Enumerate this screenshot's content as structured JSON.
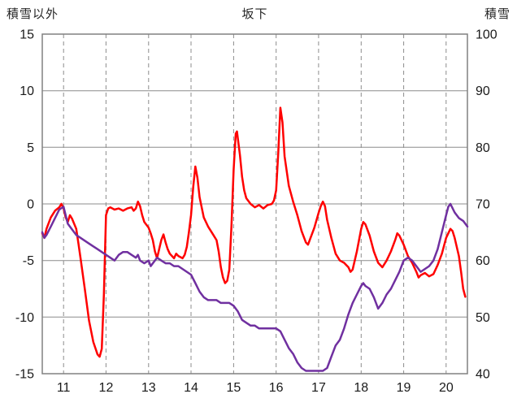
{
  "header": {
    "left_axis_title": "積雪以外",
    "title": "坂下",
    "right_axis_title": "積雪"
  },
  "colors": {
    "red_line": "#ff0000",
    "purple_line": "#7030a0",
    "grid": "#8c8c8c",
    "border": "#808080",
    "tick_text": "#1a1a1a"
  },
  "chart_data": {
    "type": "line",
    "title": "坂下",
    "left_axis": {
      "label": "積雪以外",
      "min": -15,
      "max": 15,
      "ticks": [
        15,
        10,
        5,
        0,
        -5,
        -10,
        -15
      ]
    },
    "right_axis": {
      "label": "積雪",
      "min": 40,
      "max": 100,
      "ticks": [
        100,
        90,
        80,
        70,
        60,
        50,
        40
      ]
    },
    "x_axis": {
      "min": 10.5,
      "max": 20.5,
      "ticks": [
        11,
        12,
        13,
        14,
        15,
        16,
        17,
        18,
        19,
        20
      ]
    },
    "grid": {
      "horizontal": "solid",
      "vertical": "dashed"
    },
    "legend": "none",
    "series": [
      {
        "name": "red-line",
        "axis": "left",
        "color": "#ff0000",
        "points": [
          [
            10.5,
            -2.6
          ],
          [
            10.55,
            -3.0
          ],
          [
            10.6,
            -2.2
          ],
          [
            10.7,
            -1.2
          ],
          [
            10.8,
            -0.6
          ],
          [
            10.9,
            -0.3
          ],
          [
            10.95,
            0.0
          ],
          [
            11.0,
            -0.4
          ],
          [
            11.05,
            -1.2
          ],
          [
            11.1,
            -1.6
          ],
          [
            11.15,
            -1.0
          ],
          [
            11.2,
            -1.3
          ],
          [
            11.3,
            -2.2
          ],
          [
            11.35,
            -3.5
          ],
          [
            11.4,
            -4.8
          ],
          [
            11.5,
            -7.5
          ],
          [
            11.6,
            -10.3
          ],
          [
            11.7,
            -12.2
          ],
          [
            11.8,
            -13.3
          ],
          [
            11.85,
            -13.5
          ],
          [
            11.9,
            -12.8
          ],
          [
            11.95,
            -8.0
          ],
          [
            12.0,
            -1.0
          ],
          [
            12.05,
            -0.4
          ],
          [
            12.1,
            -0.3
          ],
          [
            12.2,
            -0.5
          ],
          [
            12.3,
            -0.4
          ],
          [
            12.4,
            -0.6
          ],
          [
            12.5,
            -0.4
          ],
          [
            12.6,
            -0.3
          ],
          [
            12.65,
            -0.6
          ],
          [
            12.7,
            -0.4
          ],
          [
            12.75,
            0.2
          ],
          [
            12.8,
            -0.2
          ],
          [
            12.85,
            -1.0
          ],
          [
            12.9,
            -1.6
          ],
          [
            13.0,
            -2.1
          ],
          [
            13.05,
            -2.6
          ],
          [
            13.1,
            -3.2
          ],
          [
            13.15,
            -4.2
          ],
          [
            13.2,
            -4.8
          ],
          [
            13.25,
            -4.0
          ],
          [
            13.3,
            -3.2
          ],
          [
            13.35,
            -2.7
          ],
          [
            13.4,
            -3.4
          ],
          [
            13.45,
            -4.0
          ],
          [
            13.5,
            -4.4
          ],
          [
            13.6,
            -4.8
          ],
          [
            13.65,
            -4.4
          ],
          [
            13.7,
            -4.6
          ],
          [
            13.8,
            -4.8
          ],
          [
            13.85,
            -4.5
          ],
          [
            13.9,
            -3.8
          ],
          [
            13.95,
            -2.5
          ],
          [
            14.0,
            -1.0
          ],
          [
            14.05,
            1.5
          ],
          [
            14.1,
            3.3
          ],
          [
            14.15,
            2.3
          ],
          [
            14.2,
            0.6
          ],
          [
            14.25,
            -0.3
          ],
          [
            14.3,
            -1.2
          ],
          [
            14.4,
            -2.0
          ],
          [
            14.5,
            -2.6
          ],
          [
            14.6,
            -3.2
          ],
          [
            14.65,
            -4.2
          ],
          [
            14.7,
            -5.6
          ],
          [
            14.75,
            -6.5
          ],
          [
            14.8,
            -7.0
          ],
          [
            14.85,
            -6.8
          ],
          [
            14.9,
            -5.8
          ],
          [
            14.95,
            -2.0
          ],
          [
            15.0,
            3.0
          ],
          [
            15.05,
            6.2
          ],
          [
            15.08,
            6.4
          ],
          [
            15.15,
            4.3
          ],
          [
            15.2,
            2.4
          ],
          [
            15.25,
            1.2
          ],
          [
            15.3,
            0.5
          ],
          [
            15.4,
            0.0
          ],
          [
            15.5,
            -0.3
          ],
          [
            15.6,
            -0.1
          ],
          [
            15.7,
            -0.4
          ],
          [
            15.8,
            -0.1
          ],
          [
            15.9,
            0.0
          ],
          [
            15.95,
            0.3
          ],
          [
            16.0,
            1.2
          ],
          [
            16.05,
            4.5
          ],
          [
            16.1,
            8.5
          ],
          [
            16.15,
            7.2
          ],
          [
            16.2,
            4.2
          ],
          [
            16.3,
            1.6
          ],
          [
            16.4,
            0.2
          ],
          [
            16.5,
            -1.0
          ],
          [
            16.6,
            -2.4
          ],
          [
            16.7,
            -3.4
          ],
          [
            16.75,
            -3.6
          ],
          [
            16.8,
            -3.1
          ],
          [
            16.9,
            -2.1
          ],
          [
            17.0,
            -0.8
          ],
          [
            17.05,
            -0.2
          ],
          [
            17.1,
            0.2
          ],
          [
            17.15,
            -0.2
          ],
          [
            17.2,
            -1.4
          ],
          [
            17.3,
            -3.0
          ],
          [
            17.4,
            -4.4
          ],
          [
            17.5,
            -5.0
          ],
          [
            17.6,
            -5.2
          ],
          [
            17.7,
            -5.6
          ],
          [
            17.75,
            -6.0
          ],
          [
            17.8,
            -5.8
          ],
          [
            17.9,
            -4.2
          ],
          [
            18.0,
            -2.2
          ],
          [
            18.05,
            -1.6
          ],
          [
            18.1,
            -1.8
          ],
          [
            18.2,
            -2.8
          ],
          [
            18.3,
            -4.2
          ],
          [
            18.4,
            -5.2
          ],
          [
            18.5,
            -5.6
          ],
          [
            18.6,
            -5.0
          ],
          [
            18.7,
            -4.2
          ],
          [
            18.8,
            -3.2
          ],
          [
            18.85,
            -2.6
          ],
          [
            18.9,
            -2.8
          ],
          [
            19.0,
            -3.6
          ],
          [
            19.1,
            -4.6
          ],
          [
            19.2,
            -5.2
          ],
          [
            19.3,
            -6.0
          ],
          [
            19.35,
            -6.5
          ],
          [
            19.4,
            -6.3
          ],
          [
            19.5,
            -6.1
          ],
          [
            19.6,
            -6.4
          ],
          [
            19.7,
            -6.2
          ],
          [
            19.8,
            -5.4
          ],
          [
            19.9,
            -4.4
          ],
          [
            20.0,
            -3.0
          ],
          [
            20.1,
            -2.2
          ],
          [
            20.15,
            -2.4
          ],
          [
            20.2,
            -3.0
          ],
          [
            20.3,
            -4.6
          ],
          [
            20.35,
            -6.0
          ],
          [
            20.4,
            -7.5
          ],
          [
            20.45,
            -8.2
          ]
        ]
      },
      {
        "name": "purple-line",
        "axis": "right",
        "color": "#7030a0",
        "points": [
          [
            10.5,
            65
          ],
          [
            10.55,
            64
          ],
          [
            10.6,
            64.5
          ],
          [
            10.7,
            66
          ],
          [
            10.8,
            67.5
          ],
          [
            10.9,
            69
          ],
          [
            11.0,
            69.5
          ],
          [
            11.05,
            68
          ],
          [
            11.1,
            66.5
          ],
          [
            11.2,
            65.5
          ],
          [
            11.3,
            64.5
          ],
          [
            11.4,
            64
          ],
          [
            11.5,
            63.5
          ],
          [
            11.6,
            63
          ],
          [
            11.7,
            62.5
          ],
          [
            11.8,
            62
          ],
          [
            11.9,
            61.5
          ],
          [
            12.0,
            61
          ],
          [
            12.1,
            60.5
          ],
          [
            12.2,
            60
          ],
          [
            12.3,
            61
          ],
          [
            12.4,
            61.5
          ],
          [
            12.5,
            61.5
          ],
          [
            12.6,
            61
          ],
          [
            12.7,
            60.5
          ],
          [
            12.75,
            61
          ],
          [
            12.8,
            60
          ],
          [
            12.9,
            59.5
          ],
          [
            13.0,
            60
          ],
          [
            13.05,
            59
          ],
          [
            13.1,
            59.5
          ],
          [
            13.2,
            60.5
          ],
          [
            13.3,
            60
          ],
          [
            13.4,
            59.5
          ],
          [
            13.5,
            59.5
          ],
          [
            13.6,
            59
          ],
          [
            13.7,
            59
          ],
          [
            13.8,
            58.5
          ],
          [
            13.9,
            58
          ],
          [
            14.0,
            57.5
          ],
          [
            14.1,
            56
          ],
          [
            14.2,
            54.5
          ],
          [
            14.3,
            53.5
          ],
          [
            14.4,
            53
          ],
          [
            14.5,
            53
          ],
          [
            14.6,
            53
          ],
          [
            14.7,
            52.5
          ],
          [
            14.8,
            52.5
          ],
          [
            14.9,
            52.5
          ],
          [
            15.0,
            52
          ],
          [
            15.1,
            51
          ],
          [
            15.2,
            49.5
          ],
          [
            15.3,
            49
          ],
          [
            15.4,
            48.5
          ],
          [
            15.5,
            48.5
          ],
          [
            15.6,
            48
          ],
          [
            15.7,
            48
          ],
          [
            15.8,
            48
          ],
          [
            15.9,
            48
          ],
          [
            16.0,
            48
          ],
          [
            16.1,
            47.5
          ],
          [
            16.2,
            46
          ],
          [
            16.3,
            44.5
          ],
          [
            16.4,
            43.5
          ],
          [
            16.5,
            42
          ],
          [
            16.6,
            41
          ],
          [
            16.7,
            40.5
          ],
          [
            16.8,
            40.5
          ],
          [
            16.9,
            40.5
          ],
          [
            17.0,
            40.5
          ],
          [
            17.1,
            40.5
          ],
          [
            17.2,
            41
          ],
          [
            17.3,
            43
          ],
          [
            17.4,
            45
          ],
          [
            17.5,
            46
          ],
          [
            17.6,
            48
          ],
          [
            17.7,
            50.5
          ],
          [
            17.8,
            52.5
          ],
          [
            17.9,
            54
          ],
          [
            18.0,
            55.5
          ],
          [
            18.05,
            56
          ],
          [
            18.1,
            55.5
          ],
          [
            18.2,
            55
          ],
          [
            18.3,
            53.5
          ],
          [
            18.4,
            51.5
          ],
          [
            18.5,
            52.5
          ],
          [
            18.6,
            54
          ],
          [
            18.7,
            55
          ],
          [
            18.8,
            56.5
          ],
          [
            18.9,
            58
          ],
          [
            19.0,
            60
          ],
          [
            19.1,
            60.5
          ],
          [
            19.2,
            60
          ],
          [
            19.3,
            59
          ],
          [
            19.4,
            58
          ],
          [
            19.5,
            58.5
          ],
          [
            19.6,
            59
          ],
          [
            19.7,
            60
          ],
          [
            19.8,
            62
          ],
          [
            19.9,
            65
          ],
          [
            20.0,
            68
          ],
          [
            20.05,
            69.5
          ],
          [
            20.1,
            70
          ],
          [
            20.2,
            68.5
          ],
          [
            20.3,
            67.5
          ],
          [
            20.4,
            67
          ],
          [
            20.5,
            66
          ]
        ]
      }
    ]
  }
}
